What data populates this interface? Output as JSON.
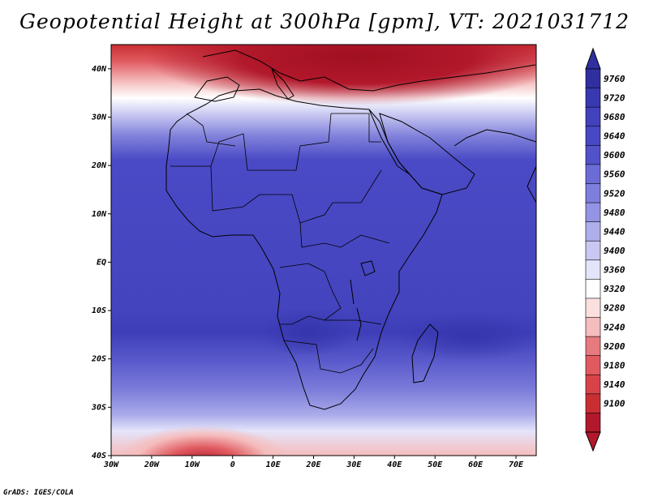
{
  "title": "Geopotential Height at 300hPa [gpm], VT: 2021031712",
  "credit": "GrADS: IGES/COLA",
  "colors": {
    "levels": [
      "#b2182b",
      "#c92f32",
      "#d8434a",
      "#e05a60",
      "#e67a7e",
      "#ee9c9c",
      "#f5bdbd",
      "#fbe0e0",
      "#ffffff",
      "#e4e4fa",
      "#c8c8f2",
      "#aeaeec",
      "#9494e4",
      "#7e7edc",
      "#6c6cd6",
      "#5e5ed0",
      "#5252ca",
      "#4848c4",
      "#4242bc",
      "#3838b0",
      "#2f2fa0"
    ],
    "land_outline": "#000000"
  },
  "chart_data": {
    "type": "heatmap",
    "title": "Geopotential Height at 300hPa [gpm], VT: 2021031712",
    "units": "gpm",
    "valid_time": "2021031712",
    "x_axis": {
      "ticks": [
        "30W",
        "20W",
        "10W",
        "0",
        "10E",
        "20E",
        "30E",
        "40E",
        "50E",
        "60E",
        "70E"
      ],
      "range": [
        -30,
        75
      ]
    },
    "y_axis": {
      "ticks": [
        "40S",
        "30S",
        "20S",
        "10S",
        "EQ",
        "10N",
        "20N",
        "30N",
        "40N"
      ],
      "range": [
        -40,
        45
      ]
    },
    "colorbar": {
      "labels": [
        "9760",
        "9720",
        "9680",
        "9640",
        "9600",
        "9560",
        "9520",
        "9480",
        "9440",
        "9400",
        "9360",
        "9320",
        "9280",
        "9240",
        "9200",
        "9180",
        "9140",
        "9100"
      ],
      "orientation": "vertical",
      "placement": "right"
    },
    "field_profile_by_latitude": [
      {
        "lat": 45,
        "value": 9160
      },
      {
        "lat": 40,
        "value": 9220
      },
      {
        "lat": 35,
        "value": 9330
      },
      {
        "lat": 30,
        "value": 9420
      },
      {
        "lat": 25,
        "value": 9530
      },
      {
        "lat": 20,
        "value": 9600
      },
      {
        "lat": 15,
        "value": 9680
      },
      {
        "lat": 0,
        "value": 9690
      },
      {
        "lat": -15,
        "value": 9700
      },
      {
        "lat": -20,
        "value": 9680
      },
      {
        "lat": -25,
        "value": 9600
      },
      {
        "lat": -30,
        "value": 9540
      },
      {
        "lat": -35,
        "value": 9440
      },
      {
        "lat": -40,
        "value": 9300
      }
    ]
  }
}
